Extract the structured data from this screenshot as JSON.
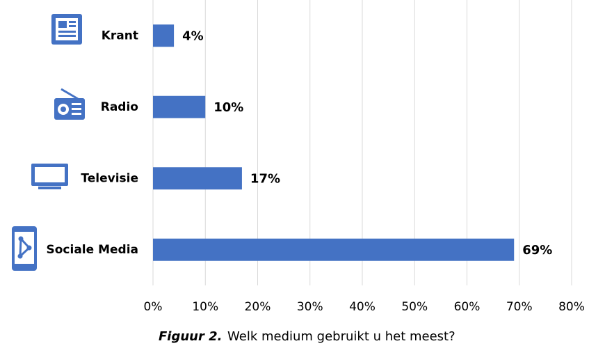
{
  "chart_data": {
    "type": "bar",
    "orientation": "horizontal",
    "categories": [
      "Krant",
      "Radio",
      "Televisie",
      "Sociale Media"
    ],
    "values": [
      4,
      10,
      17,
      69
    ],
    "value_labels": [
      "4%",
      "10%",
      "17%",
      "69%"
    ],
    "color": "#4472c4",
    "xlim": [
      0,
      80
    ],
    "xticks": [
      {
        "value": 0,
        "label": "0%"
      },
      {
        "value": 10,
        "label": "10%"
      },
      {
        "value": 20,
        "label": "20%"
      },
      {
        "value": 30,
        "label": "30%"
      },
      {
        "value": 40,
        "label": "40%"
      },
      {
        "value": 50,
        "label": "50%"
      },
      {
        "value": 60,
        "label": "60%"
      },
      {
        "value": 70,
        "label": "70%"
      },
      {
        "value": 80,
        "label": "80%"
      }
    ],
    "grid": true,
    "caption_label": "Figuur 2.",
    "caption": "Welk medium gebruikt u het meest?"
  }
}
